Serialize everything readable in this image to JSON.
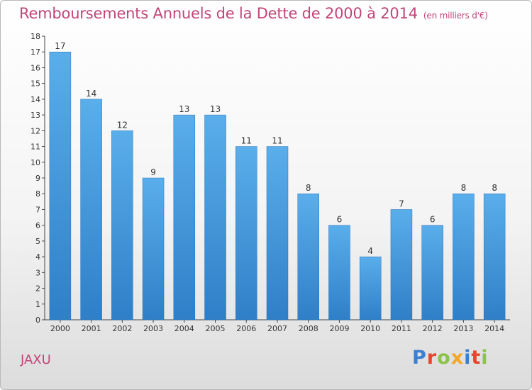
{
  "chart_data": {
    "type": "bar",
    "title": "Remboursements Annuels de la Dette de 2000 à 2014",
    "unit": "(en milliers d'€)",
    "categories": [
      "2000",
      "2001",
      "2002",
      "2003",
      "2004",
      "2005",
      "2006",
      "2007",
      "2008",
      "2009",
      "2010",
      "2011",
      "2012",
      "2013",
      "2014"
    ],
    "values": [
      17,
      14,
      12,
      9,
      13,
      13,
      11,
      11,
      8,
      6,
      4,
      7,
      6,
      8,
      8
    ],
    "ylim": [
      0,
      18
    ],
    "yticks": [
      0,
      1,
      2,
      3,
      4,
      5,
      6,
      7,
      8,
      9,
      10,
      11,
      12,
      13,
      14,
      15,
      16,
      17,
      18
    ],
    "xlabel": "",
    "ylabel": "",
    "grid": false,
    "legend": "none",
    "bar_color": "#4a9fe0"
  },
  "footer": {
    "commune": "JAXU",
    "brand": "Proxiti",
    "brand_colors": [
      "#3b7fd0",
      "#e8452c",
      "#8bc34a",
      "#f5a623",
      "#3b7fd0",
      "#e8452c",
      "#8bc34a"
    ]
  }
}
